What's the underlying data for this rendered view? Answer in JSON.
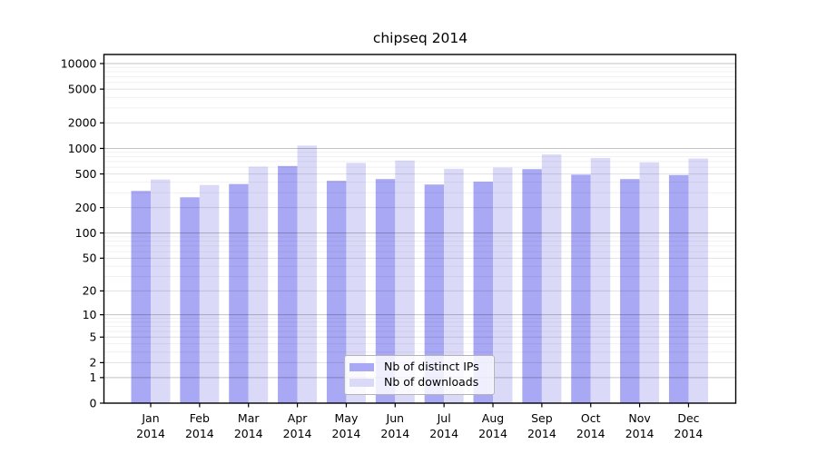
{
  "chart_data": {
    "type": "bar",
    "title": "chipseq 2014",
    "categories": [
      "Jan",
      "Feb",
      "Mar",
      "Apr",
      "May",
      "Jun",
      "Jul",
      "Aug",
      "Sep",
      "Oct",
      "Nov",
      "Dec"
    ],
    "category_year": "2014",
    "series": [
      {
        "name": "Nb of distinct IPs",
        "color": "#a8a8f4",
        "values": [
          315,
          265,
          380,
          620,
          415,
          435,
          375,
          405,
          570,
          490,
          435,
          485
        ]
      },
      {
        "name": "Nb of downloads",
        "color": "#dadaf8",
        "values": [
          430,
          370,
          610,
          1080,
          675,
          720,
          575,
          595,
          850,
          770,
          685,
          760
        ]
      }
    ],
    "y_axis": {
      "scale": "log10(v+1)",
      "ticks": [
        0,
        1,
        2,
        5,
        10,
        20,
        50,
        100,
        200,
        500,
        1000,
        2000,
        5000,
        10000
      ],
      "minor_ticks": [
        3,
        4,
        6,
        7,
        8,
        9,
        30,
        40,
        60,
        70,
        80,
        90,
        300,
        400,
        600,
        700,
        800,
        900,
        3000,
        4000,
        6000,
        7000,
        8000,
        9000
      ],
      "range_top": 12800
    },
    "grid": true,
    "legend": {
      "position": "bottom-center",
      "entries": [
        "Nb of distinct IPs",
        "Nb of downloads"
      ]
    }
  }
}
